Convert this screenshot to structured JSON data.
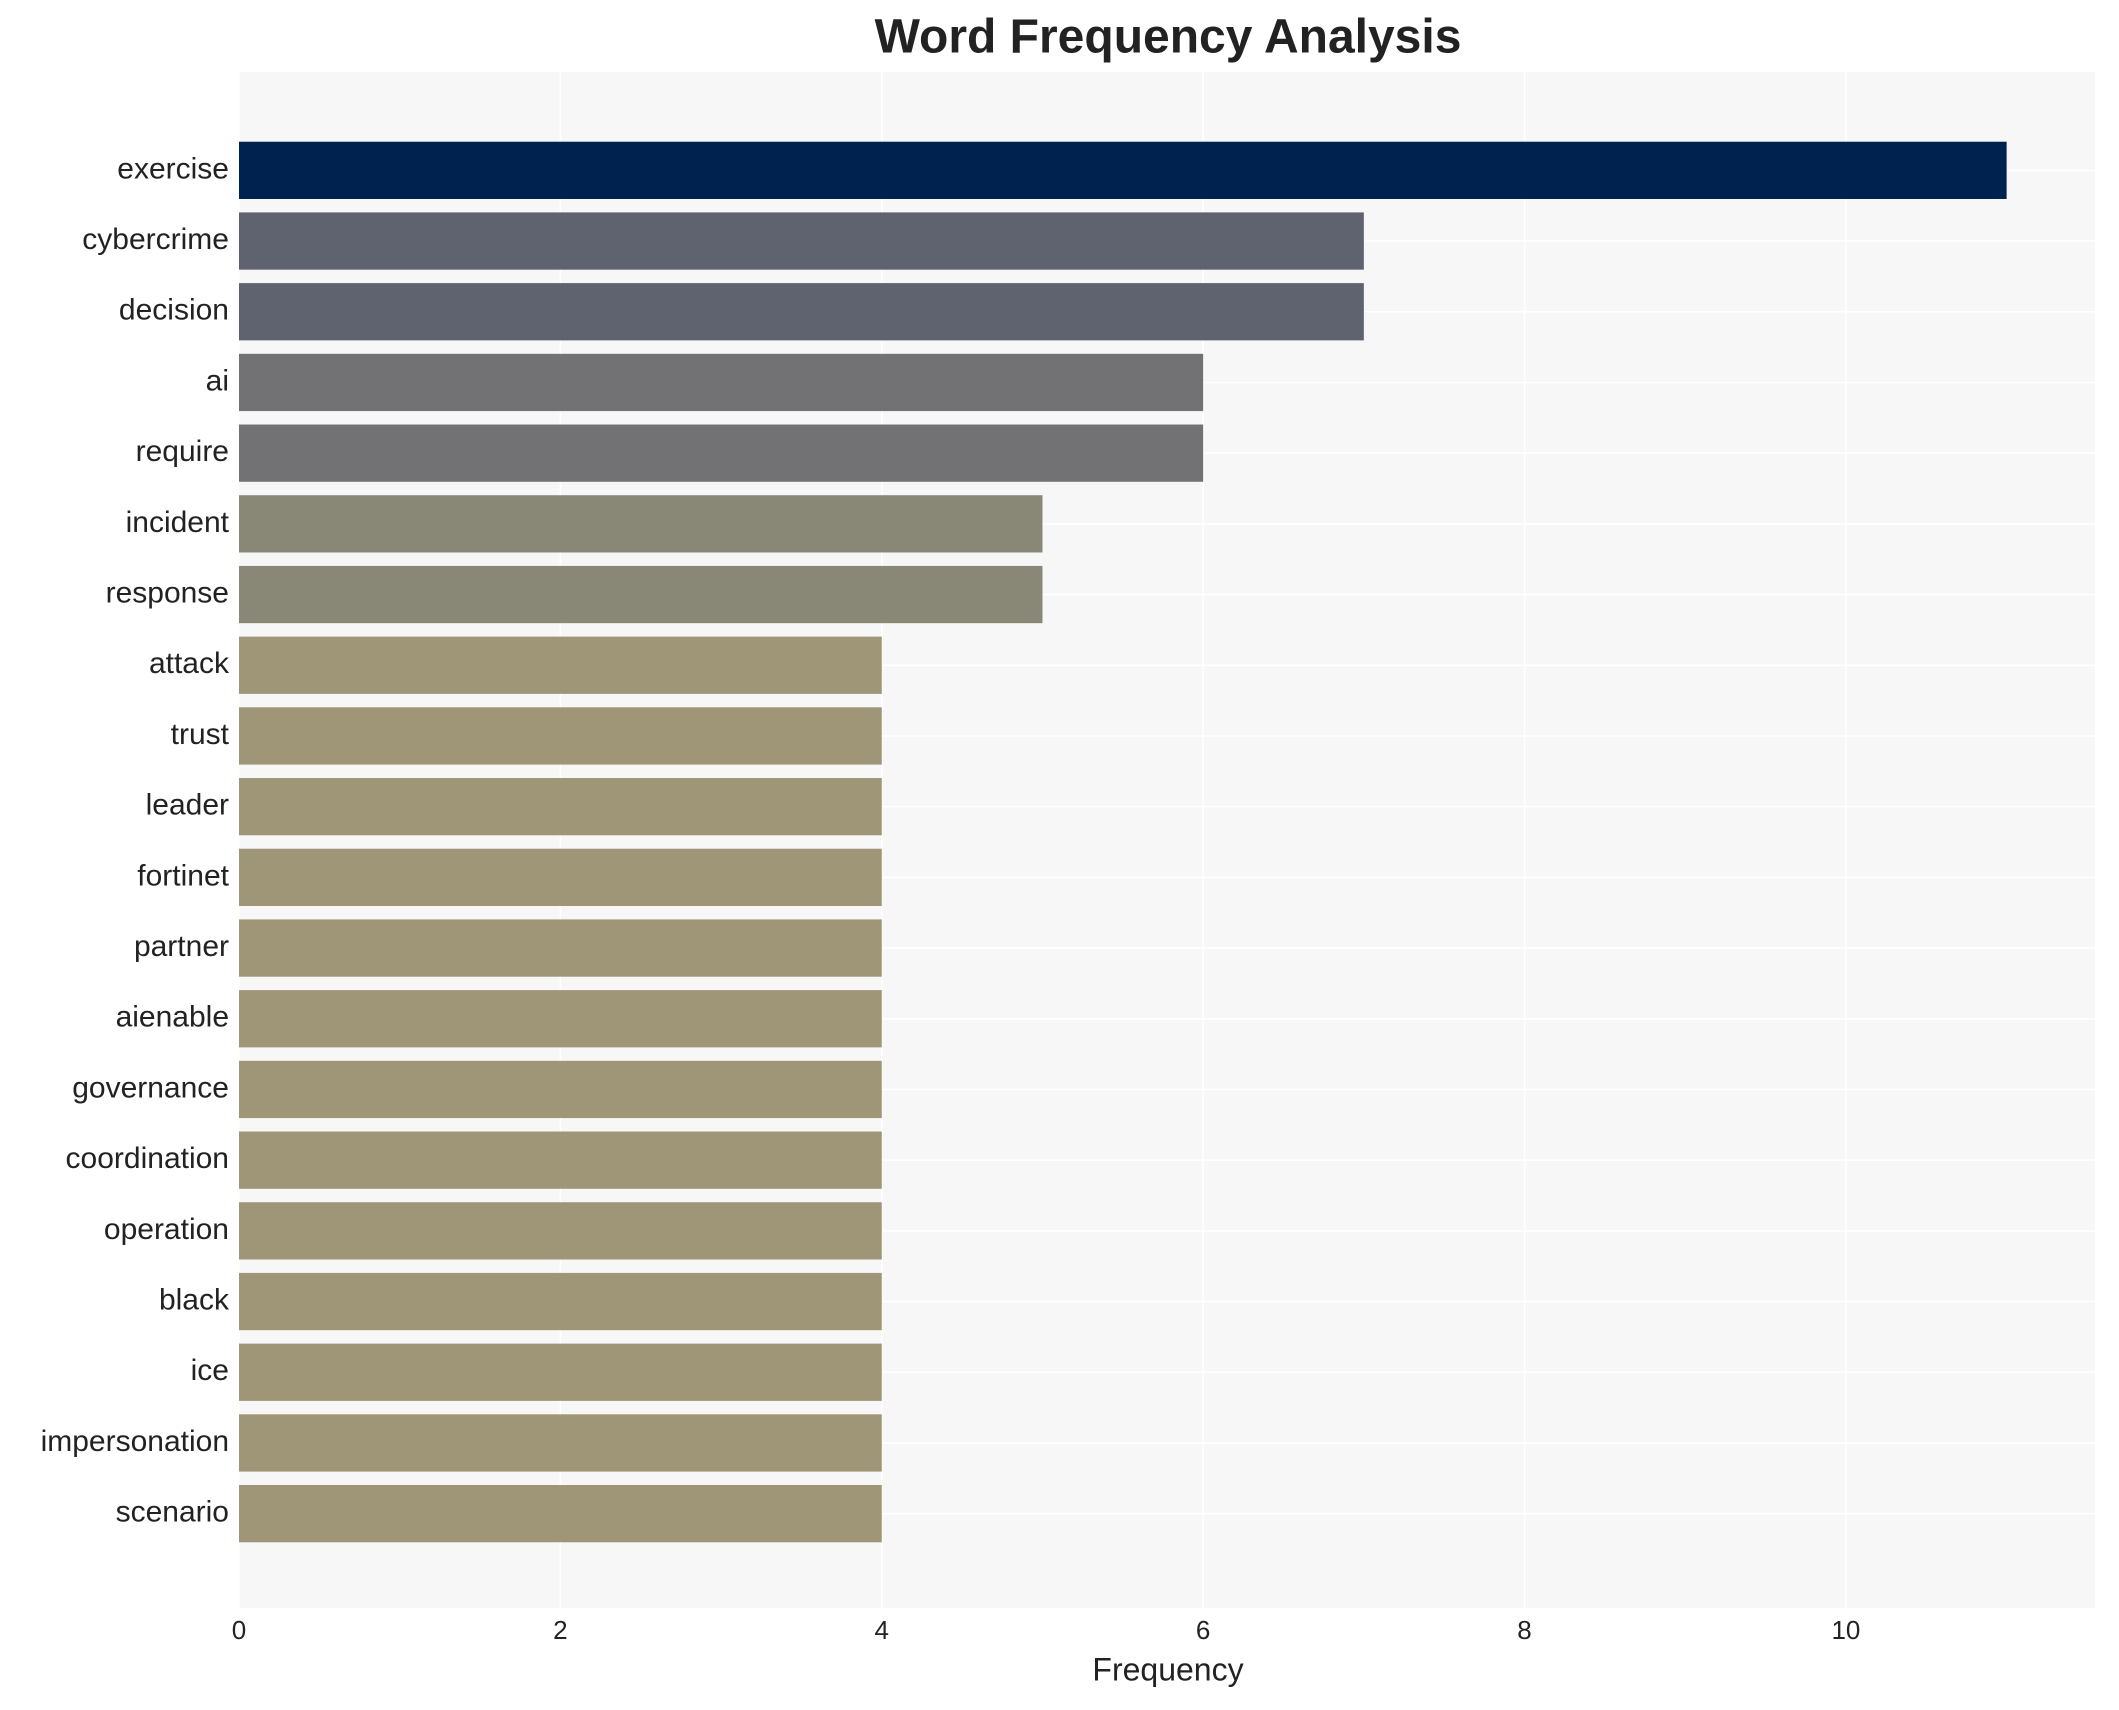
{
  "chart_data": {
    "type": "bar",
    "orientation": "horizontal",
    "title": "Word Frequency Analysis",
    "x_label": "Frequency",
    "categories": [
      "exercise",
      "cybercrime",
      "decision",
      "ai",
      "require",
      "incident",
      "response",
      "attack",
      "trust",
      "leader",
      "fortinet",
      "partner",
      "aienable",
      "governance",
      "coordination",
      "operation",
      "black",
      "ice",
      "impersonation",
      "scenario"
    ],
    "values": [
      11,
      7,
      7,
      6,
      6,
      5,
      5,
      4,
      4,
      4,
      4,
      4,
      4,
      4,
      4,
      4,
      4,
      4,
      4,
      4
    ],
    "colors": [
      "#00224e",
      "#5f6370",
      "#5f6370",
      "#727274",
      "#727274",
      "#898775",
      "#898775",
      "#9e9676",
      "#9e9676",
      "#9e9676",
      "#9e9676",
      "#9e9676",
      "#9e9676",
      "#9e9676",
      "#9e9676",
      "#9e9676",
      "#9e9676",
      "#9e9676",
      "#9e9676",
      "#9e9676"
    ],
    "xlim": [
      0,
      11.55
    ],
    "xticks": [
      0,
      2,
      4,
      6,
      8,
      10
    ],
    "grid": true
  }
}
